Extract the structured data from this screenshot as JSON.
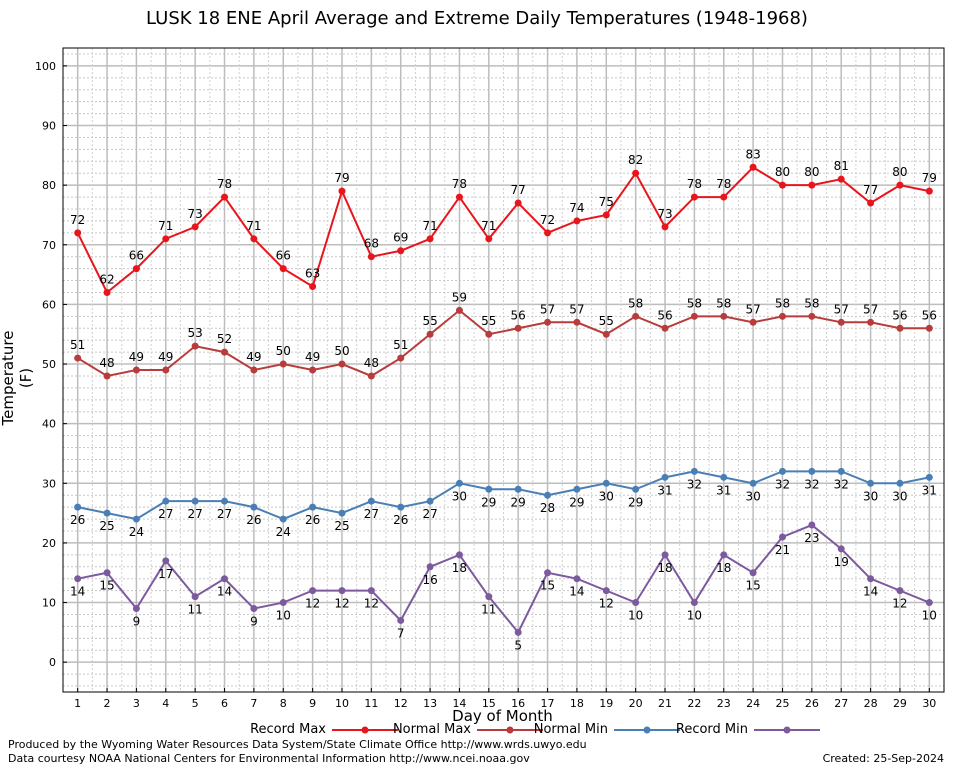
{
  "chart_data": {
    "type": "line",
    "title": "LUSK 18 ENE April Average and Extreme Daily Temperatures (1948-1968)",
    "xlabel": "Day of Month",
    "ylabel": "Temperature (F)",
    "x": [
      1,
      2,
      3,
      4,
      5,
      6,
      7,
      8,
      9,
      10,
      11,
      12,
      13,
      14,
      15,
      16,
      17,
      18,
      19,
      20,
      21,
      22,
      23,
      24,
      25,
      26,
      27,
      28,
      29,
      30
    ],
    "xlim": [
      0.5,
      30.5
    ],
    "ylim": [
      -5,
      103
    ],
    "yticks": [
      0,
      10,
      20,
      30,
      40,
      50,
      60,
      70,
      80,
      90,
      100
    ],
    "grid": true,
    "legend_position": "bottom",
    "series": [
      {
        "name": "Record Max",
        "color": "#e8161c",
        "label_position": "above",
        "values": [
          72,
          62,
          66,
          71,
          73,
          78,
          71,
          66,
          63,
          79,
          68,
          69,
          71,
          78,
          71,
          77,
          72,
          74,
          75,
          82,
          73,
          78,
          78,
          83,
          80,
          80,
          81,
          77,
          80,
          79
        ]
      },
      {
        "name": "Normal Max",
        "color": "#b83c3c",
        "label_position": "above",
        "values": [
          51,
          48,
          49,
          49,
          53,
          52,
          49,
          50,
          49,
          50,
          48,
          51,
          55,
          59,
          55,
          56,
          57,
          57,
          55,
          58,
          56,
          58,
          58,
          57,
          58,
          58,
          57,
          57,
          56,
          56
        ]
      },
      {
        "name": "Normal Min",
        "color": "#4a7fb5",
        "label_position": "below",
        "values": [
          26,
          25,
          24,
          27,
          27,
          27,
          26,
          24,
          26,
          25,
          27,
          26,
          27,
          30,
          29,
          29,
          28,
          29,
          30,
          29,
          31,
          32,
          31,
          30,
          32,
          32,
          32,
          30,
          30,
          31
        ]
      },
      {
        "name": "Record Min",
        "color": "#7d5a9e",
        "label_position": "below",
        "values": [
          14,
          15,
          9,
          17,
          11,
          14,
          9,
          10,
          12,
          12,
          12,
          7,
          16,
          18,
          11,
          5,
          15,
          14,
          12,
          10,
          18,
          10,
          18,
          15,
          21,
          23,
          19,
          14,
          12,
          10
        ]
      }
    ]
  },
  "footer": {
    "produced_by": "Produced by the Wyoming Water Resources Data System/State Climate Office http://www.wrds.uwyo.edu",
    "courtesy": "Data courtesy NOAA National Centers for Environmental Information http://www.ncei.noaa.gov",
    "created": "Created:  25-Sep-2024"
  }
}
